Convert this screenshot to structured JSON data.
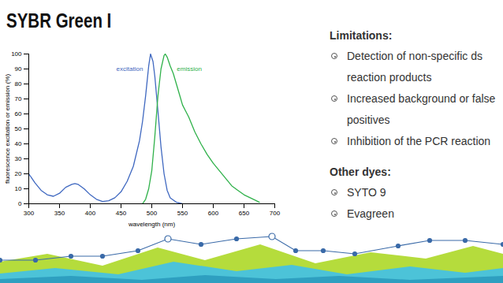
{
  "title": "SYBR Green I",
  "chart_data": {
    "type": "line",
    "xlabel": "wavelength (nm)",
    "ylabel": "fluorescence excitation or emission (%)",
    "xlim": [
      300,
      700
    ],
    "xticks": [
      300,
      350,
      400,
      450,
      500,
      550,
      600,
      650,
      700
    ],
    "ylim": [
      0,
      100
    ],
    "yticks": [
      0,
      10,
      20,
      30,
      40,
      50,
      60,
      70,
      80,
      90,
      100
    ],
    "grid": false,
    "series": [
      {
        "name": "excitation",
        "color": "#3f68c0",
        "x": [
          300,
          305,
          310,
          320,
          330,
          340,
          350,
          360,
          370,
          375,
          380,
          390,
          400,
          410,
          420,
          430,
          440,
          450,
          460,
          470,
          480,
          485,
          490,
          495,
          498,
          502,
          505,
          510,
          515,
          520,
          525,
          530,
          540,
          550
        ],
        "values": [
          20,
          17,
          14,
          9,
          6,
          5,
          7,
          11,
          13,
          13.5,
          13,
          10,
          6,
          3,
          1.5,
          2,
          4,
          8,
          15,
          25,
          42,
          55,
          72,
          92,
          100,
          95,
          85,
          62,
          38,
          20,
          9,
          4,
          1,
          0
        ]
      },
      {
        "name": "emission",
        "color": "#2fb14a",
        "x": [
          485,
          490,
          495,
          500,
          505,
          510,
          515,
          520,
          522,
          525,
          530,
          535,
          540,
          545,
          550,
          555,
          560,
          570,
          580,
          590,
          600,
          610,
          620,
          630,
          640,
          650,
          660,
          670,
          675
        ],
        "values": [
          0,
          3,
          10,
          22,
          45,
          72,
          90,
          99,
          100,
          98,
          92,
          87,
          80,
          73,
          66,
          62,
          58,
          48,
          40,
          33,
          27,
          22,
          17,
          12,
          9,
          6,
          4,
          2,
          1
        ]
      }
    ],
    "annotations": [
      {
        "text": "excitation",
        "x": 464,
        "y": 90,
        "color": "#3f68c0"
      },
      {
        "text": "emission",
        "x": 561,
        "y": 90,
        "color": "#2fb14a"
      }
    ]
  },
  "text_panel": {
    "sections": [
      {
        "heading": "Limitations:",
        "items": [
          "Detection of non-specific ds reaction products",
          "Increased background or false positives",
          "Inhibition of the PCR reaction"
        ]
      },
      {
        "heading": "Other dyes:",
        "items": [
          "SYTO 9",
          "Evagreen"
        ]
      }
    ]
  }
}
